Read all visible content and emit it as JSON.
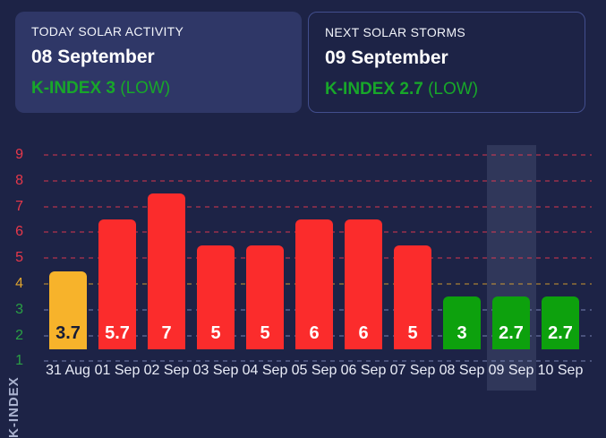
{
  "cards": [
    {
      "title": "TODAY SOLAR ACTIVITY",
      "date": "08 September",
      "kindex": "K-INDEX 3",
      "kindex_status": "(LOW)"
    },
    {
      "title": "NEXT SOLAR STORMS",
      "date": "09 September",
      "kindex": "K-INDEX 2.7",
      "kindex_status": "(LOW)"
    }
  ],
  "chart_data": {
    "type": "bar",
    "title": "",
    "y_axis_title": "K-INDEX",
    "categories": [
      "31 Aug",
      "01 Sep",
      "02 Sep",
      "03 Sep",
      "04 Sep",
      "05 Sep",
      "06 Sep",
      "07 Sep",
      "08 Sep",
      "09 Sep",
      "10 Sep"
    ],
    "values": [
      3.7,
      5.7,
      7,
      5,
      5,
      6,
      6,
      5,
      3,
      2.7,
      2.7
    ],
    "bar_display_tops": [
      4.5,
      6.5,
      7.5,
      5.5,
      5.5,
      6.5,
      6.5,
      5.5,
      3.5,
      3.5,
      3.5
    ],
    "bar_colors": [
      "#f7b32b",
      "#fb2c2c",
      "#fb2c2c",
      "#fb2c2c",
      "#fb2c2c",
      "#fb2c2c",
      "#fb2c2c",
      "#fb2c2c",
      "#0da10d",
      "#0da10d",
      "#0da10d"
    ],
    "value_label_colors": [
      "#171c36",
      "#ffffff",
      "#ffffff",
      "#ffffff",
      "#ffffff",
      "#ffffff",
      "#ffffff",
      "#ffffff",
      "#ffffff",
      "#ffffff",
      "#ffffff"
    ],
    "yticks": [
      {
        "value": 1,
        "color": "#2aa144",
        "grid": "rgba(141,154,205,0.40)"
      },
      {
        "value": 2,
        "color": "#2aa144",
        "grid": "rgba(141,154,205,0.40)"
      },
      {
        "value": 3,
        "color": "#2aa144",
        "grid": "rgba(141,154,205,0.40)"
      },
      {
        "value": 4,
        "color": "#dfa42e",
        "grid": "rgba(223,164,46,0.45)"
      },
      {
        "value": 5,
        "color": "#e8384a",
        "grid": "rgba(251,58,80,0.42)"
      },
      {
        "value": 6,
        "color": "#e8384a",
        "grid": "rgba(251,58,80,0.42)"
      },
      {
        "value": 7,
        "color": "#e8384a",
        "grid": "rgba(251,58,80,0.42)"
      },
      {
        "value": 8,
        "color": "#e8384a",
        "grid": "rgba(251,58,80,0.42)"
      },
      {
        "value": 9,
        "color": "#e8384a",
        "grid": "rgba(251,58,80,0.42)"
      }
    ],
    "ylim": [
      1,
      9.5
    ],
    "grid": "horizontal-dashed",
    "legend": "none",
    "highlighted_category": "09 Sep"
  },
  "colors": {
    "page_background": "#1d2346",
    "card_background": "#2f3767",
    "card_border": "#424e8d",
    "kindex_green": "#18a72a",
    "bar_red": "#fb2c2c",
    "bar_yellow": "#f7b32b",
    "bar_green": "#0da10d",
    "highlight_band": "rgba(193,203,240,0.12)"
  }
}
